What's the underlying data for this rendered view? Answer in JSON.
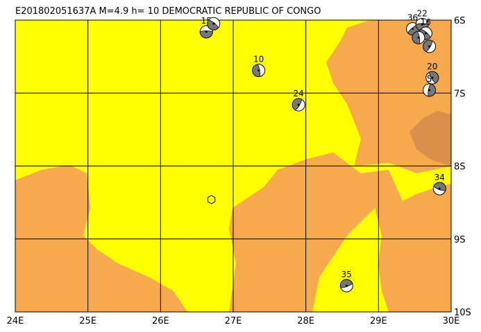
{
  "title": "E201802051637A  M=4.9  h= 10  DEMOCRATIC REPUBLIC OF CONGO",
  "map": {
    "lon_range": [
      24,
      30
    ],
    "lat_range": [
      6,
      10
    ],
    "lon_ticks": [
      {
        "value": 24,
        "label": "24E"
      },
      {
        "value": 25,
        "label": "25E"
      },
      {
        "value": 26,
        "label": "26E"
      },
      {
        "value": 27,
        "label": "27E"
      },
      {
        "value": 28,
        "label": "28E"
      },
      {
        "value": 29,
        "label": "29E"
      },
      {
        "value": 30,
        "label": "30E"
      }
    ],
    "lat_ticks": [
      {
        "value": 6,
        "label": "6S"
      },
      {
        "value": 7,
        "label": "7S"
      },
      {
        "value": 8,
        "label": "8S"
      },
      {
        "value": 9,
        "label": "9S"
      },
      {
        "value": 10,
        "label": "10S"
      }
    ],
    "events": [
      {
        "lon": 26.63,
        "lat": 6.16,
        "depth": 15
      },
      {
        "lon": 26.73,
        "lat": 6.05,
        "depth": null
      },
      {
        "lon": 27.35,
        "lat": 6.69,
        "depth": 10
      },
      {
        "lon": 27.9,
        "lat": 7.16,
        "depth": 24
      },
      {
        "lon": 28.56,
        "lat": 9.64,
        "depth": 35
      },
      {
        "lon": 29.84,
        "lat": 8.31,
        "depth": 34
      },
      {
        "lon": 29.74,
        "lat": 6.79,
        "depth": 20
      },
      {
        "lon": 29.7,
        "lat": 6.96,
        "depth": 5
      },
      {
        "lon": 29.47,
        "lat": 6.12,
        "depth": 36
      },
      {
        "lon": 29.6,
        "lat": 6.06,
        "depth": 22
      },
      {
        "lon": 29.65,
        "lat": 6.18,
        "depth": 16
      },
      {
        "lon": 29.55,
        "lat": 6.24,
        "depth": null
      },
      {
        "lon": 29.7,
        "lat": 6.36,
        "depth": null
      }
    ],
    "epicenter": {
      "lon": 26.7,
      "lat": 8.46
    }
  }
}
